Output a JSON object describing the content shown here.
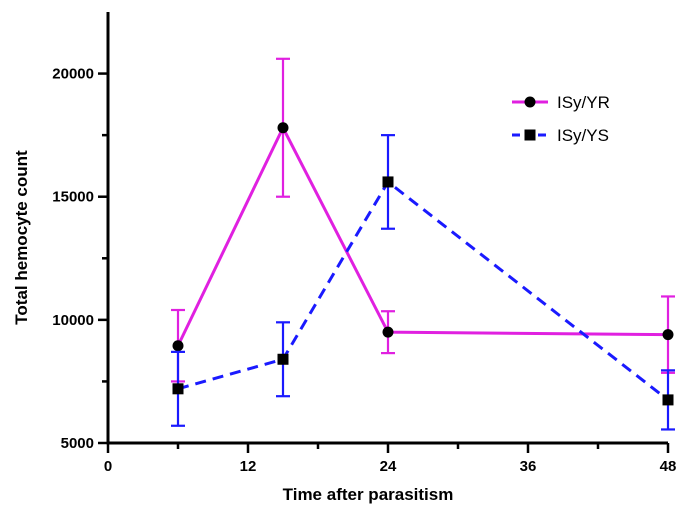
{
  "chart_data": {
    "type": "line",
    "title": "",
    "xlabel": "Time after parasitism",
    "ylabel": "Total hemocyte count",
    "xlim": [
      0,
      48
    ],
    "ylim": [
      5000,
      22500
    ],
    "x_ticks": [
      0,
      12,
      24,
      36,
      48
    ],
    "x_tick_labels": [
      "0",
      "12",
      "24",
      "36",
      "48"
    ],
    "y_ticks": [
      5000,
      10000,
      15000,
      20000
    ],
    "y_tick_labels": [
      "5000",
      "10000",
      "15000",
      "20000"
    ],
    "grid": false,
    "legend_position": "top-right",
    "series": [
      {
        "name": "ISy/YR",
        "color": "#e020e0",
        "line_style": "solid",
        "marker": "circle",
        "x": [
          6,
          15,
          24,
          48
        ],
        "y": [
          8950,
          17800,
          9500,
          9400
        ],
        "error": [
          1450,
          2800,
          850,
          1550
        ]
      },
      {
        "name": "ISy/YS",
        "color": "#1a1aff",
        "line_style": "dashed",
        "marker": "square",
        "x": [
          6,
          15,
          24,
          48
        ],
        "y": [
          7200,
          8400,
          15600,
          6750
        ],
        "error": [
          1500,
          1500,
          1900,
          1200
        ]
      }
    ]
  }
}
